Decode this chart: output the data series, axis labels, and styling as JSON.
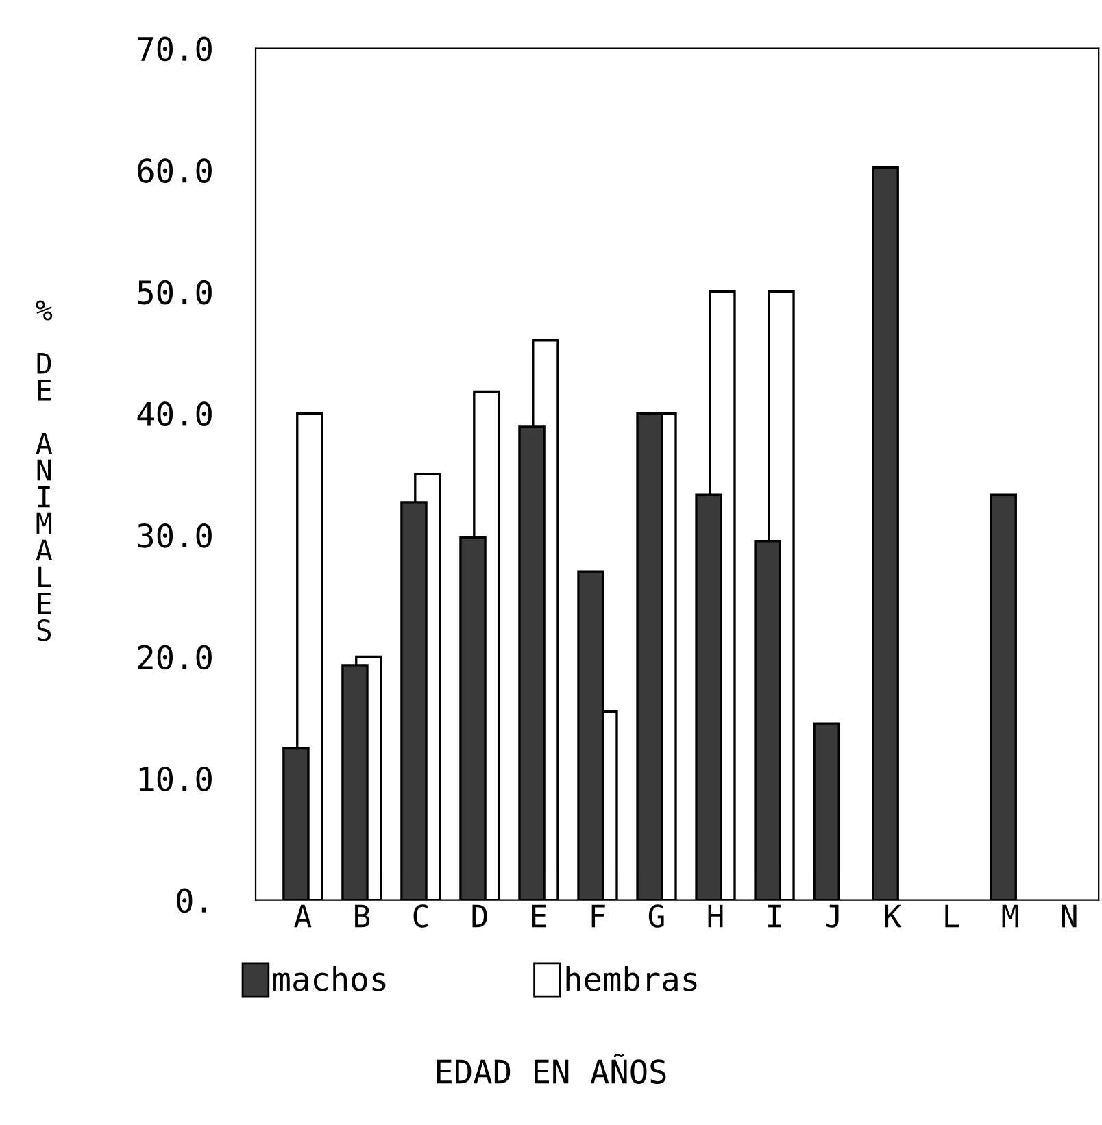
{
  "chart_data": {
    "type": "bar",
    "xlabel": "EDAD EN AÑOS",
    "ylabel": "% DE ANIMALES",
    "categories": [
      "A",
      "B",
      "C",
      "D",
      "E",
      "F",
      "G",
      "H",
      "I",
      "J",
      "K",
      "L",
      "M",
      "N"
    ],
    "series": [
      {
        "name": "machos",
        "color": "#3a3a3a",
        "values": [
          12.5,
          19.3,
          32.7,
          29.8,
          38.9,
          27.0,
          40.0,
          33.3,
          29.5,
          14.5,
          60.2,
          null,
          33.3,
          null
        ]
      },
      {
        "name": "hembras",
        "color": "#ffffff",
        "values": [
          40.0,
          20.0,
          35.0,
          41.8,
          46.0,
          15.5,
          40.0,
          50.0,
          50.0,
          null,
          null,
          null,
          null,
          null
        ]
      }
    ],
    "ylim": [
      0,
      70
    ],
    "yticks": [
      {
        "value": 0,
        "label": "0."
      },
      {
        "value": 10,
        "label": "10.0"
      },
      {
        "value": 20,
        "label": "20.0"
      },
      {
        "value": 30,
        "label": "30.0"
      },
      {
        "value": 40,
        "label": "40.0"
      },
      {
        "value": 50,
        "label": "50.0"
      },
      {
        "value": 60,
        "label": "60.0"
      },
      {
        "value": 70,
        "label": "70.0"
      }
    ],
    "grid": false,
    "legend": "bottom"
  }
}
